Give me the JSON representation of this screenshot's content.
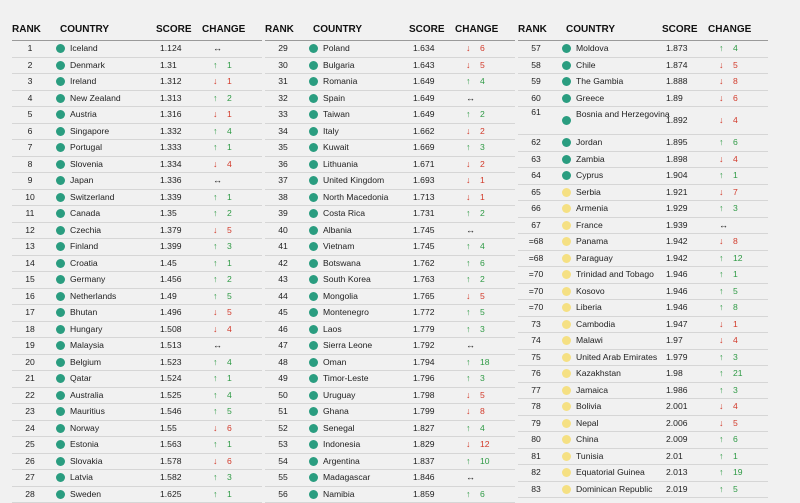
{
  "headers": {
    "rank": "RANK",
    "country": "COUNTRY",
    "score": "SCORE",
    "change": "CHANGE"
  },
  "colors": {
    "green": "#2a9d80",
    "yellow": "#f5e083",
    "up": "#2f9a45",
    "down": "#d23a2a"
  },
  "columns": [
    [
      {
        "rank": "1",
        "country": "Iceland",
        "score": "1.124",
        "dir": "same",
        "change": "",
        "dot": "green"
      },
      {
        "rank": "2",
        "country": "Denmark",
        "score": "1.31",
        "dir": "up",
        "change": "1",
        "dot": "green"
      },
      {
        "rank": "3",
        "country": "Ireland",
        "score": "1.312",
        "dir": "down",
        "change": "1",
        "dot": "green"
      },
      {
        "rank": "4",
        "country": "New Zealand",
        "score": "1.313",
        "dir": "up",
        "change": "2",
        "dot": "green"
      },
      {
        "rank": "5",
        "country": "Austria",
        "score": "1.316",
        "dir": "down",
        "change": "1",
        "dot": "green"
      },
      {
        "rank": "6",
        "country": "Singapore",
        "score": "1.332",
        "dir": "up",
        "change": "4",
        "dot": "green"
      },
      {
        "rank": "7",
        "country": "Portugal",
        "score": "1.333",
        "dir": "up",
        "change": "1",
        "dot": "green"
      },
      {
        "rank": "8",
        "country": "Slovenia",
        "score": "1.334",
        "dir": "down",
        "change": "4",
        "dot": "green"
      },
      {
        "rank": "9",
        "country": "Japan",
        "score": "1.336",
        "dir": "same",
        "change": "",
        "dot": "green"
      },
      {
        "rank": "10",
        "country": "Switzerland",
        "score": "1.339",
        "dir": "up",
        "change": "1",
        "dot": "green"
      },
      {
        "rank": "11",
        "country": "Canada",
        "score": "1.35",
        "dir": "up",
        "change": "2",
        "dot": "green"
      },
      {
        "rank": "12",
        "country": "Czechia",
        "score": "1.379",
        "dir": "down",
        "change": "5",
        "dot": "green"
      },
      {
        "rank": "13",
        "country": "Finland",
        "score": "1.399",
        "dir": "up",
        "change": "3",
        "dot": "green"
      },
      {
        "rank": "14",
        "country": "Croatia",
        "score": "1.45",
        "dir": "up",
        "change": "1",
        "dot": "green"
      },
      {
        "rank": "15",
        "country": "Germany",
        "score": "1.456",
        "dir": "up",
        "change": "2",
        "dot": "green"
      },
      {
        "rank": "16",
        "country": "Netherlands",
        "score": "1.49",
        "dir": "up",
        "change": "5",
        "dot": "green"
      },
      {
        "rank": "17",
        "country": "Bhutan",
        "score": "1.496",
        "dir": "down",
        "change": "5",
        "dot": "green"
      },
      {
        "rank": "18",
        "country": "Hungary",
        "score": "1.508",
        "dir": "down",
        "change": "4",
        "dot": "green"
      },
      {
        "rank": "19",
        "country": "Malaysia",
        "score": "1.513",
        "dir": "same",
        "change": "",
        "dot": "green"
      },
      {
        "rank": "20",
        "country": "Belgium",
        "score": "1.523",
        "dir": "up",
        "change": "4",
        "dot": "green"
      },
      {
        "rank": "21",
        "country": "Qatar",
        "score": "1.524",
        "dir": "up",
        "change": "1",
        "dot": "green"
      },
      {
        "rank": "22",
        "country": "Australia",
        "score": "1.525",
        "dir": "up",
        "change": "4",
        "dot": "green"
      },
      {
        "rank": "23",
        "country": "Mauritius",
        "score": "1.546",
        "dir": "up",
        "change": "5",
        "dot": "green"
      },
      {
        "rank": "24",
        "country": "Norway",
        "score": "1.55",
        "dir": "down",
        "change": "6",
        "dot": "green"
      },
      {
        "rank": "25",
        "country": "Estonia",
        "score": "1.563",
        "dir": "up",
        "change": "1",
        "dot": "green"
      },
      {
        "rank": "26",
        "country": "Slovakia",
        "score": "1.578",
        "dir": "down",
        "change": "6",
        "dot": "green"
      },
      {
        "rank": "27",
        "country": "Latvia",
        "score": "1.582",
        "dir": "up",
        "change": "3",
        "dot": "green"
      },
      {
        "rank": "28",
        "country": "Sweden",
        "score": "1.625",
        "dir": "up",
        "change": "1",
        "dot": "green"
      }
    ],
    [
      {
        "rank": "29",
        "country": "Poland",
        "score": "1.634",
        "dir": "down",
        "change": "6",
        "dot": "green"
      },
      {
        "rank": "30",
        "country": "Bulgaria",
        "score": "1.643",
        "dir": "down",
        "change": "5",
        "dot": "green"
      },
      {
        "rank": "31",
        "country": "Romania",
        "score": "1.649",
        "dir": "up",
        "change": "4",
        "dot": "green"
      },
      {
        "rank": "32",
        "country": "Spain",
        "score": "1.649",
        "dir": "same",
        "change": "",
        "dot": "green"
      },
      {
        "rank": "33",
        "country": "Taiwan",
        "score": "1.649",
        "dir": "up",
        "change": "2",
        "dot": "green"
      },
      {
        "rank": "34",
        "country": "Italy",
        "score": "1.662",
        "dir": "down",
        "change": "2",
        "dot": "green"
      },
      {
        "rank": "35",
        "country": "Kuwait",
        "score": "1.669",
        "dir": "up",
        "change": "3",
        "dot": "green"
      },
      {
        "rank": "36",
        "country": "Lithuania",
        "score": "1.671",
        "dir": "down",
        "change": "2",
        "dot": "green"
      },
      {
        "rank": "37",
        "country": "United Kingdom",
        "score": "1.693",
        "dir": "down",
        "change": "1",
        "dot": "green"
      },
      {
        "rank": "38",
        "country": "North Macedonia",
        "score": "1.713",
        "dir": "down",
        "change": "1",
        "dot": "green"
      },
      {
        "rank": "39",
        "country": "Costa Rica",
        "score": "1.731",
        "dir": "up",
        "change": "2",
        "dot": "green"
      },
      {
        "rank": "40",
        "country": "Albania",
        "score": "1.745",
        "dir": "same",
        "change": "",
        "dot": "green"
      },
      {
        "rank": "41",
        "country": "Vietnam",
        "score": "1.745",
        "dir": "up",
        "change": "4",
        "dot": "green"
      },
      {
        "rank": "42",
        "country": "Botswana",
        "score": "1.762",
        "dir": "up",
        "change": "6",
        "dot": "green"
      },
      {
        "rank": "43",
        "country": "South Korea",
        "score": "1.763",
        "dir": "up",
        "change": "2",
        "dot": "green"
      },
      {
        "rank": "44",
        "country": "Mongolia",
        "score": "1.765",
        "dir": "down",
        "change": "5",
        "dot": "green"
      },
      {
        "rank": "45",
        "country": "Montenegro",
        "score": "1.772",
        "dir": "up",
        "change": "5",
        "dot": "green"
      },
      {
        "rank": "46",
        "country": "Laos",
        "score": "1.779",
        "dir": "up",
        "change": "3",
        "dot": "green"
      },
      {
        "rank": "47",
        "country": "Sierra Leone",
        "score": "1.792",
        "dir": "same",
        "change": "",
        "dot": "green"
      },
      {
        "rank": "48",
        "country": "Oman",
        "score": "1.794",
        "dir": "up",
        "change": "18",
        "dot": "green"
      },
      {
        "rank": "49",
        "country": "Timor-Leste",
        "score": "1.796",
        "dir": "up",
        "change": "3",
        "dot": "green"
      },
      {
        "rank": "50",
        "country": "Uruguay",
        "score": "1.798",
        "dir": "down",
        "change": "5",
        "dot": "green"
      },
      {
        "rank": "51",
        "country": "Ghana",
        "score": "1.799",
        "dir": "down",
        "change": "8",
        "dot": "green"
      },
      {
        "rank": "52",
        "country": "Senegal",
        "score": "1.827",
        "dir": "up",
        "change": "4",
        "dot": "green"
      },
      {
        "rank": "53",
        "country": "Indonesia",
        "score": "1.829",
        "dir": "down",
        "change": "12",
        "dot": "green"
      },
      {
        "rank": "54",
        "country": "Argentina",
        "score": "1.837",
        "dir": "up",
        "change": "10",
        "dot": "green"
      },
      {
        "rank": "55",
        "country": "Madagascar",
        "score": "1.846",
        "dir": "same",
        "change": "",
        "dot": "green"
      },
      {
        "rank": "56",
        "country": "Namibia",
        "score": "1.859",
        "dir": "up",
        "change": "6",
        "dot": "green"
      }
    ],
    [
      {
        "rank": "57",
        "country": "Moldova",
        "score": "1.873",
        "dir": "up",
        "change": "4",
        "dot": "green"
      },
      {
        "rank": "58",
        "country": "Chile",
        "score": "1.874",
        "dir": "down",
        "change": "5",
        "dot": "green"
      },
      {
        "rank": "59",
        "country": "The Gambia",
        "score": "1.888",
        "dir": "down",
        "change": "8",
        "dot": "green"
      },
      {
        "rank": "60",
        "country": "Greece",
        "score": "1.89",
        "dir": "down",
        "change": "6",
        "dot": "green"
      },
      {
        "rank": "61",
        "country": "Bosnia and Herzegovina",
        "score": "1.892",
        "dir": "down",
        "change": "4",
        "dot": "green",
        "tall": true
      },
      {
        "rank": "62",
        "country": "Jordan",
        "score": "1.895",
        "dir": "up",
        "change": "6",
        "dot": "green"
      },
      {
        "rank": "63",
        "country": "Zambia",
        "score": "1.898",
        "dir": "down",
        "change": "4",
        "dot": "green"
      },
      {
        "rank": "64",
        "country": "Cyprus",
        "score": "1.904",
        "dir": "up",
        "change": "1",
        "dot": "green"
      },
      {
        "rank": "65",
        "country": "Serbia",
        "score": "1.921",
        "dir": "down",
        "change": "7",
        "dot": "yellow"
      },
      {
        "rank": "66",
        "country": "Armenia",
        "score": "1.929",
        "dir": "up",
        "change": "3",
        "dot": "yellow"
      },
      {
        "rank": "67",
        "country": "France",
        "score": "1.939",
        "dir": "same",
        "change": "",
        "dot": "yellow"
      },
      {
        "rank": "=68",
        "country": "Panama",
        "score": "1.942",
        "dir": "down",
        "change": "8",
        "dot": "yellow"
      },
      {
        "rank": "=68",
        "country": "Paraguay",
        "score": "1.942",
        "dir": "up",
        "change": "12",
        "dot": "yellow"
      },
      {
        "rank": "=70",
        "country": "Trinidad and Tobago",
        "score": "1.946",
        "dir": "up",
        "change": "1",
        "dot": "yellow"
      },
      {
        "rank": "=70",
        "country": "Kosovo",
        "score": "1.946",
        "dir": "up",
        "change": "5",
        "dot": "yellow"
      },
      {
        "rank": "=70",
        "country": "Liberia",
        "score": "1.946",
        "dir": "up",
        "change": "8",
        "dot": "yellow"
      },
      {
        "rank": "73",
        "country": "Cambodia",
        "score": "1.947",
        "dir": "down",
        "change": "1",
        "dot": "yellow"
      },
      {
        "rank": "74",
        "country": "Malawi",
        "score": "1.97",
        "dir": "down",
        "change": "4",
        "dot": "yellow"
      },
      {
        "rank": "75",
        "country": "United Arab Emirates",
        "score": "1.979",
        "dir": "up",
        "change": "3",
        "dot": "yellow"
      },
      {
        "rank": "76",
        "country": "Kazakhstan",
        "score": "1.98",
        "dir": "up",
        "change": "21",
        "dot": "yellow"
      },
      {
        "rank": "77",
        "country": "Jamaica",
        "score": "1.986",
        "dram": "",
        "dir": "up",
        "change": "3",
        "dot": "yellow"
      },
      {
        "rank": "78",
        "country": "Bolivia",
        "score": "2.001",
        "dir": "down",
        "change": "4",
        "dot": "yellow"
      },
      {
        "rank": "79",
        "country": "Nepal",
        "score": "2.006",
        "dir": "down",
        "change": "5",
        "dot": "yellow"
      },
      {
        "rank": "80",
        "country": "China",
        "score": "2.009",
        "dir": "up",
        "change": "6",
        "dot": "yellow"
      },
      {
        "rank": "81",
        "country": "Tunisia",
        "score": "2.01",
        "dir": "up",
        "change": "1",
        "dot": "yellow"
      },
      {
        "rank": "82",
        "country": "Equatorial Guinea",
        "score": "2.013",
        "dir": "up",
        "change": "19",
        "dot": "yellow"
      },
      {
        "rank": "83",
        "country": "Dominican Republic",
        "score": "2.019",
        "dir": "up",
        "change": "5",
        "dot": "yellow"
      }
    ]
  ]
}
